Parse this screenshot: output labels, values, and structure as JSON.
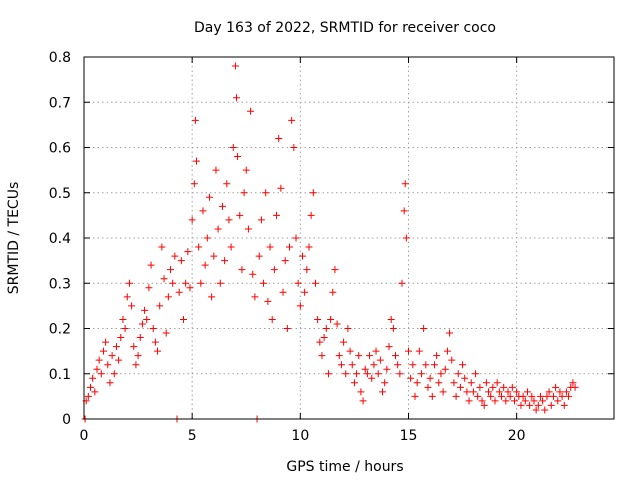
{
  "chart_data": {
    "type": "scatter",
    "title": "Day 163 of 2022, SRMTID for receiver coco",
    "xlabel": "GPS time / hours",
    "ylabel": "SRMTID / TECUs",
    "xlim": [
      0,
      24.5
    ],
    "ylim": [
      0,
      0.8
    ],
    "xticks": [
      0,
      5,
      10,
      15,
      20
    ],
    "xtick_labels": [
      "0",
      "5",
      "10",
      "15",
      "20"
    ],
    "yticks": [
      0,
      0.1,
      0.2,
      0.3,
      0.4,
      0.5,
      0.6,
      0.7,
      0.8
    ],
    "ytick_labels": [
      "0",
      "0.1",
      "0.2",
      "0.3",
      "0.4",
      "0.5",
      "0.6",
      "0.7",
      "0.8"
    ],
    "grid": true,
    "marker": "plus",
    "marker_color": "#ff0000",
    "series": [
      {
        "name": "SRMTID",
        "points": [
          [
            0.05,
            0.0
          ],
          [
            0.1,
            0.04
          ],
          [
            0.2,
            0.05
          ],
          [
            0.3,
            0.07
          ],
          [
            0.4,
            0.09
          ],
          [
            0.5,
            0.06
          ],
          [
            0.6,
            0.11
          ],
          [
            0.7,
            0.13
          ],
          [
            0.8,
            0.1
          ],
          [
            0.9,
            0.15
          ],
          [
            1.0,
            0.17
          ],
          [
            1.1,
            0.12
          ],
          [
            1.2,
            0.08
          ],
          [
            1.3,
            0.14
          ],
          [
            1.4,
            0.1
          ],
          [
            1.5,
            0.16
          ],
          [
            1.6,
            0.13
          ],
          [
            1.7,
            0.18
          ],
          [
            1.8,
            0.22
          ],
          [
            1.9,
            0.2
          ],
          [
            2.0,
            0.27
          ],
          [
            2.1,
            0.3
          ],
          [
            2.2,
            0.25
          ],
          [
            2.3,
            0.16
          ],
          [
            2.4,
            0.12
          ],
          [
            2.5,
            0.14
          ],
          [
            2.6,
            0.18
          ],
          [
            2.7,
            0.21
          ],
          [
            2.8,
            0.24
          ],
          [
            2.9,
            0.22
          ],
          [
            3.0,
            0.29
          ],
          [
            3.1,
            0.34
          ],
          [
            3.2,
            0.2
          ],
          [
            3.3,
            0.17
          ],
          [
            3.4,
            0.15
          ],
          [
            3.5,
            0.25
          ],
          [
            3.6,
            0.38
          ],
          [
            3.7,
            0.31
          ],
          [
            3.8,
            0.19
          ],
          [
            3.9,
            0.27
          ],
          [
            4.0,
            0.33
          ],
          [
            4.1,
            0.3
          ],
          [
            4.2,
            0.36
          ],
          [
            4.3,
            0.0
          ],
          [
            4.4,
            0.28
          ],
          [
            4.5,
            0.35
          ],
          [
            4.6,
            0.22
          ],
          [
            4.7,
            0.3
          ],
          [
            4.8,
            0.37
          ],
          [
            4.9,
            0.29
          ],
          [
            5.0,
            0.44
          ],
          [
            5.1,
            0.52
          ],
          [
            5.15,
            0.66
          ],
          [
            5.2,
            0.57
          ],
          [
            5.3,
            0.38
          ],
          [
            5.4,
            0.3
          ],
          [
            5.5,
            0.46
          ],
          [
            5.6,
            0.34
          ],
          [
            5.7,
            0.4
          ],
          [
            5.8,
            0.49
          ],
          [
            5.9,
            0.27
          ],
          [
            6.0,
            0.36
          ],
          [
            6.1,
            0.55
          ],
          [
            6.2,
            0.42
          ],
          [
            6.3,
            0.3
          ],
          [
            6.4,
            0.47
          ],
          [
            6.5,
            0.35
          ],
          [
            6.6,
            0.52
          ],
          [
            6.7,
            0.44
          ],
          [
            6.8,
            0.38
          ],
          [
            6.9,
            0.6
          ],
          [
            7.0,
            0.78
          ],
          [
            7.05,
            0.71
          ],
          [
            7.1,
            0.58
          ],
          [
            7.2,
            0.45
          ],
          [
            7.3,
            0.33
          ],
          [
            7.4,
            0.5
          ],
          [
            7.5,
            0.55
          ],
          [
            7.6,
            0.42
          ],
          [
            7.7,
            0.68
          ],
          [
            7.8,
            0.32
          ],
          [
            7.9,
            0.27
          ],
          [
            8.0,
            0.0
          ],
          [
            8.1,
            0.36
          ],
          [
            8.2,
            0.44
          ],
          [
            8.3,
            0.3
          ],
          [
            8.4,
            0.5
          ],
          [
            8.5,
            0.26
          ],
          [
            8.6,
            0.38
          ],
          [
            8.7,
            0.22
          ],
          [
            8.8,
            0.33
          ],
          [
            8.9,
            0.45
          ],
          [
            9.0,
            0.62
          ],
          [
            9.1,
            0.51
          ],
          [
            9.2,
            0.28
          ],
          [
            9.3,
            0.35
          ],
          [
            9.4,
            0.2
          ],
          [
            9.5,
            0.38
          ],
          [
            9.6,
            0.66
          ],
          [
            9.7,
            0.6
          ],
          [
            9.8,
            0.4
          ],
          [
            9.9,
            0.3
          ],
          [
            10.0,
            0.25
          ],
          [
            10.1,
            0.36
          ],
          [
            10.2,
            0.28
          ],
          [
            10.3,
            0.33
          ],
          [
            10.4,
            0.38
          ],
          [
            10.5,
            0.45
          ],
          [
            10.6,
            0.5
          ],
          [
            10.7,
            0.3
          ],
          [
            10.8,
            0.22
          ],
          [
            10.9,
            0.17
          ],
          [
            11.0,
            0.14
          ],
          [
            11.1,
            0.18
          ],
          [
            11.2,
            0.2
          ],
          [
            11.3,
            0.1
          ],
          [
            11.4,
            0.22
          ],
          [
            11.5,
            0.28
          ],
          [
            11.6,
            0.33
          ],
          [
            11.7,
            0.21
          ],
          [
            11.8,
            0.14
          ],
          [
            11.9,
            0.12
          ],
          [
            12.0,
            0.17
          ],
          [
            12.1,
            0.1
          ],
          [
            12.2,
            0.2
          ],
          [
            12.3,
            0.15
          ],
          [
            12.4,
            0.12
          ],
          [
            12.5,
            0.08
          ],
          [
            12.6,
            0.1
          ],
          [
            12.7,
            0.14
          ],
          [
            12.8,
            0.06
          ],
          [
            12.9,
            0.04
          ],
          [
            13.0,
            0.11
          ],
          [
            13.1,
            0.1
          ],
          [
            13.2,
            0.14
          ],
          [
            13.3,
            0.09
          ],
          [
            13.4,
            0.12
          ],
          [
            13.5,
            0.15
          ],
          [
            13.6,
            0.1
          ],
          [
            13.7,
            0.13
          ],
          [
            13.8,
            0.06
          ],
          [
            13.9,
            0.08
          ],
          [
            14.0,
            0.11
          ],
          [
            14.1,
            0.16
          ],
          [
            14.2,
            0.22
          ],
          [
            14.3,
            0.2
          ],
          [
            14.4,
            0.14
          ],
          [
            14.5,
            0.12
          ],
          [
            14.6,
            0.1
          ],
          [
            14.7,
            0.3
          ],
          [
            14.8,
            0.46
          ],
          [
            14.85,
            0.52
          ],
          [
            14.9,
            0.4
          ],
          [
            15.0,
            0.15
          ],
          [
            15.1,
            0.09
          ],
          [
            15.2,
            0.12
          ],
          [
            15.3,
            0.05
          ],
          [
            15.4,
            0.08
          ],
          [
            15.5,
            0.15
          ],
          [
            15.6,
            0.1
          ],
          [
            15.7,
            0.2
          ],
          [
            15.8,
            0.12
          ],
          [
            15.9,
            0.07
          ],
          [
            16.0,
            0.09
          ],
          [
            16.1,
            0.05
          ],
          [
            16.2,
            0.12
          ],
          [
            16.3,
            0.14
          ],
          [
            16.4,
            0.08
          ],
          [
            16.5,
            0.1
          ],
          [
            16.6,
            0.06
          ],
          [
            16.7,
            0.11
          ],
          [
            16.8,
            0.15
          ],
          [
            16.9,
            0.19
          ],
          [
            17.0,
            0.13
          ],
          [
            17.1,
            0.08
          ],
          [
            17.2,
            0.05
          ],
          [
            17.3,
            0.1
          ],
          [
            17.4,
            0.07
          ],
          [
            17.5,
            0.12
          ],
          [
            17.6,
            0.09
          ],
          [
            17.7,
            0.06
          ],
          [
            17.8,
            0.04
          ],
          [
            17.9,
            0.08
          ],
          [
            18.0,
            0.06
          ],
          [
            18.1,
            0.1
          ],
          [
            18.2,
            0.05
          ],
          [
            18.3,
            0.07
          ],
          [
            18.4,
            0.04
          ],
          [
            18.5,
            0.03
          ],
          [
            18.6,
            0.08
          ],
          [
            18.7,
            0.06
          ],
          [
            18.8,
            0.05
          ],
          [
            18.9,
            0.07
          ],
          [
            19.0,
            0.04
          ],
          [
            19.1,
            0.08
          ],
          [
            19.2,
            0.06
          ],
          [
            19.3,
            0.05
          ],
          [
            19.4,
            0.07
          ],
          [
            19.5,
            0.04
          ],
          [
            19.6,
            0.06
          ],
          [
            19.7,
            0.05
          ],
          [
            19.8,
            0.07
          ],
          [
            19.9,
            0.04
          ],
          [
            20.0,
            0.06
          ],
          [
            20.1,
            0.05
          ],
          [
            20.2,
            0.03
          ],
          [
            20.3,
            0.05
          ],
          [
            20.4,
            0.04
          ],
          [
            20.5,
            0.06
          ],
          [
            20.6,
            0.03
          ],
          [
            20.7,
            0.05
          ],
          [
            20.8,
            0.04
          ],
          [
            20.9,
            0.02
          ],
          [
            21.0,
            0.03
          ],
          [
            21.1,
            0.05
          ],
          [
            21.2,
            0.04
          ],
          [
            21.3,
            0.02
          ],
          [
            21.4,
            0.05
          ],
          [
            21.5,
            0.06
          ],
          [
            21.6,
            0.03
          ],
          [
            21.7,
            0.05
          ],
          [
            21.8,
            0.07
          ],
          [
            21.9,
            0.04
          ],
          [
            22.0,
            0.06
          ],
          [
            22.1,
            0.05
          ],
          [
            22.2,
            0.03
          ],
          [
            22.3,
            0.06
          ],
          [
            22.4,
            0.05
          ],
          [
            22.5,
            0.07
          ],
          [
            22.6,
            0.08
          ],
          [
            22.7,
            0.07
          ]
        ]
      }
    ]
  }
}
